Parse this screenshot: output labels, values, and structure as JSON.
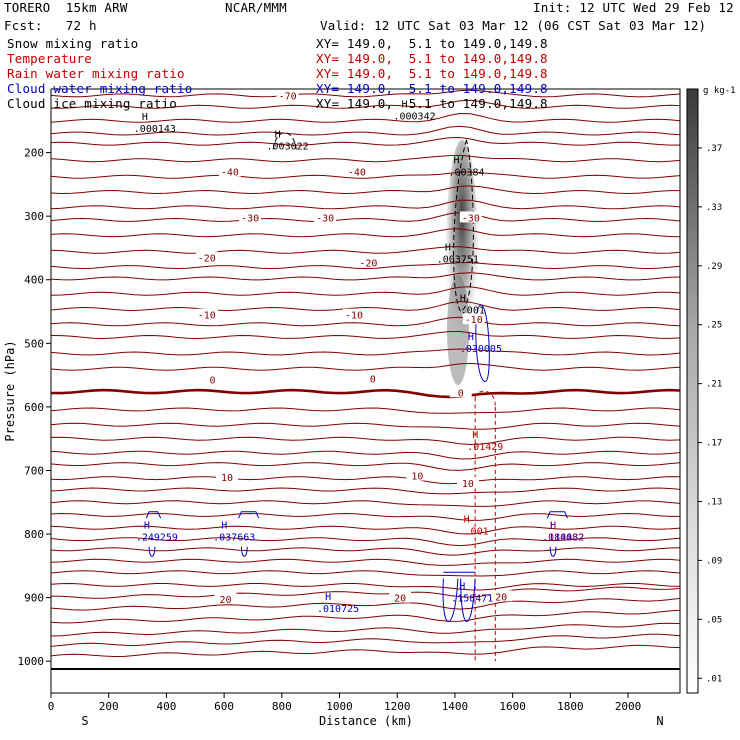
{
  "header": {
    "model": "TORERO  15km ARW",
    "org": "NCAR/MMM",
    "init": "Init: 12 UTC Wed 29 Feb 12",
    "fcst": "Fcst:   72 h",
    "valid": "Valid: 12 UTC Sat 03 Mar 12 (06 CST Sat 03 Mar 12)"
  },
  "fields": [
    {
      "name": "Snow mixing ratio",
      "xy": "XY= 149.0,  5.1 to 149.0,149.8",
      "color": "#000000"
    },
    {
      "name": "Temperature",
      "xy": "XY= 149.0,  5.1 to 149.0,149.8",
      "color": "#c00000"
    },
    {
      "name": "Rain water mixing ratio",
      "xy": "XY= 149.0,  5.1 to 149.0,149.8",
      "color": "#c00000"
    },
    {
      "name": "Cloud water mixing ratio",
      "xy": "XY= 149.0,  5.1 to 149.0,149.8",
      "color": "#0000c0"
    },
    {
      "name": "Cloud ice mixing ratio",
      "xy": "XY= 149.0,  5.1 to 149.0,149.8",
      "color": "#000000"
    }
  ],
  "colors": {
    "temperature": "#800000",
    "zero_isotherm": "#800000",
    "rain": "#d00000",
    "cloud_water": "#0000c0",
    "cloud_ice": "#000000",
    "axis": "#000000"
  },
  "chart_data": {
    "type": "cross-section",
    "xlabel": "Distance (km)",
    "ylabel": "Pressure (hPa)",
    "xlim": [
      0,
      2180
    ],
    "ylim": [
      1050,
      100
    ],
    "x_ticks": [
      0,
      200,
      400,
      600,
      800,
      1000,
      1200,
      1400,
      1600,
      1800,
      2000
    ],
    "y_ticks": [
      200,
      300,
      400,
      500,
      600,
      700,
      800,
      900,
      1000
    ],
    "x_end_labels": {
      "left": "S",
      "right": "N"
    },
    "colorbar": {
      "unit": "g kg-1",
      "levels": [
        0.01,
        0.05,
        0.09,
        0.13,
        0.17,
        0.21,
        0.25,
        0.29,
        0.33,
        0.37,
        0.41
      ],
      "tick_labels": [
        ".01",
        ".05",
        ".09",
        ".13",
        ".17",
        ".21",
        ".25",
        ".29",
        ".33",
        ".37"
      ],
      "range": [
        0,
        0.41
      ]
    },
    "temperature_labels": [
      {
        "x": 820,
        "p": 110,
        "text": "-70"
      },
      {
        "x": 620,
        "p": 230,
        "text": "-40"
      },
      {
        "x": 1060,
        "p": 230,
        "text": "-40"
      },
      {
        "x": 690,
        "p": 302,
        "text": "-30"
      },
      {
        "x": 950,
        "p": 302,
        "text": "-30"
      },
      {
        "x": 1455,
        "p": 302,
        "text": "-30"
      },
      {
        "x": 540,
        "p": 365,
        "text": "-20"
      },
      {
        "x": 1100,
        "p": 373,
        "text": "-20"
      },
      {
        "x": 540,
        "p": 455,
        "text": "-10"
      },
      {
        "x": 1050,
        "p": 455,
        "text": "-10"
      },
      {
        "x": 1465,
        "p": 462,
        "text": "-10"
      },
      {
        "x": 560,
        "p": 557,
        "text": "0"
      },
      {
        "x": 1115,
        "p": 555,
        "text": "0"
      },
      {
        "x": 1420,
        "p": 577,
        "text": "0"
      },
      {
        "x": 610,
        "p": 710,
        "text": "10"
      },
      {
        "x": 1270,
        "p": 708,
        "text": "10"
      },
      {
        "x": 1445,
        "p": 720,
        "text": "10"
      },
      {
        "x": 605,
        "p": 902,
        "text": "20"
      },
      {
        "x": 1210,
        "p": 900,
        "text": "20"
      },
      {
        "x": 1560,
        "p": 898,
        "text": "20"
      }
    ],
    "max_labels": [
      {
        "x": 360,
        "p": 160,
        "text": ".000143",
        "color": "#000000"
      },
      {
        "x": 820,
        "p": 187,
        "text": ".003022",
        "color": "#000000"
      },
      {
        "x": 1260,
        "p": 140,
        "text": ".000342",
        "color": "#000000"
      },
      {
        "x": 1440,
        "p": 228,
        "text": ".00384",
        "color": "#000000"
      },
      {
        "x": 1410,
        "p": 365,
        "text": ".003751",
        "color": "#000000"
      },
      {
        "x": 1462,
        "p": 445,
        "text": ".001",
        "color": "#000000"
      },
      {
        "x": 1490,
        "p": 506,
        "text": ".030005",
        "color": "#0000c0"
      },
      {
        "x": 1505,
        "p": 660,
        "text": ".01429",
        "color": "#c00000"
      },
      {
        "x": 1475,
        "p": 793,
        "text": ".001",
        "color": "#c00000"
      },
      {
        "x": 367,
        "p": 802,
        "text": ".249259",
        "color": "#0000c0"
      },
      {
        "x": 635,
        "p": 802,
        "text": ".037663",
        "color": "#0000c0"
      },
      {
        "x": 1775,
        "p": 802,
        "text": ".184082",
        "color": "#0000c0"
      },
      {
        "x": 1775,
        "p": 802,
        "text": ".010482",
        "color": "#800080"
      },
      {
        "x": 1460,
        "p": 898,
        "text": ".158471",
        "color": "#0000c0"
      },
      {
        "x": 995,
        "p": 915,
        "text": ".010725",
        "color": "#0000c0"
      }
    ]
  }
}
